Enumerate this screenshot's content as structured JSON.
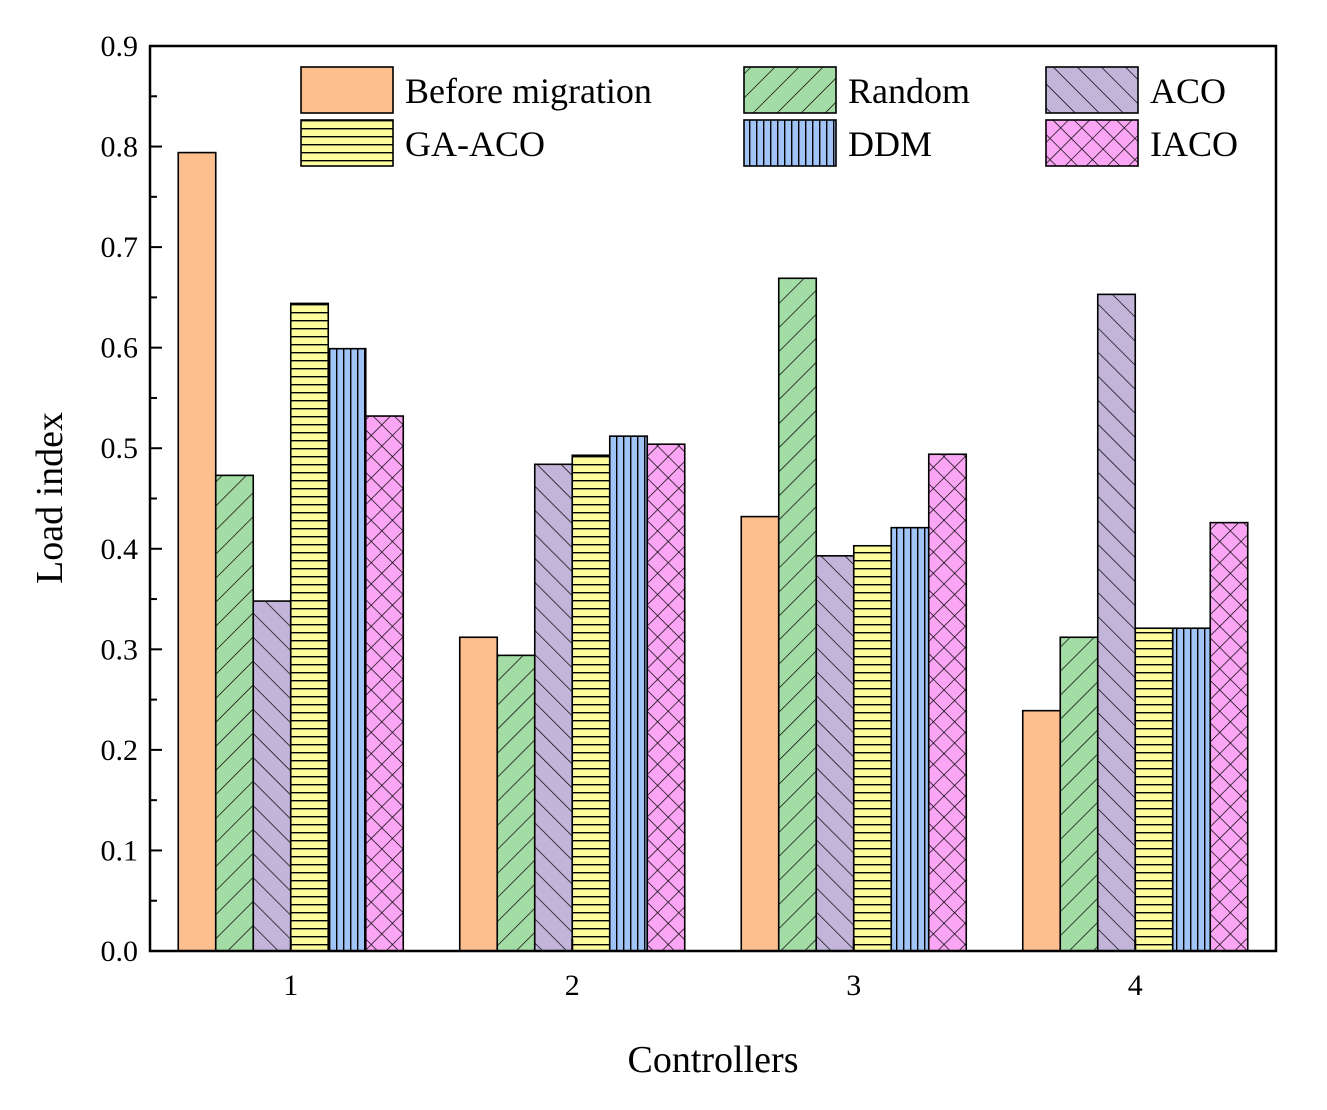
{
  "chart_data": {
    "type": "bar",
    "title": "",
    "xlabel": "Controllers",
    "ylabel": "Load index",
    "ylim": [
      0,
      0.9
    ],
    "yticks": [
      "0.0",
      "0.1",
      "0.2",
      "0.3",
      "0.4",
      "0.5",
      "0.6",
      "0.7",
      "0.8",
      "0.9"
    ],
    "categories": [
      "1",
      "2",
      "3",
      "4"
    ],
    "legend_position": "top-right",
    "series": [
      {
        "name": "Before migration",
        "values": [
          0.794,
          0.312,
          0.432,
          0.239
        ],
        "color": "#FDBF8E",
        "pattern": "none"
      },
      {
        "name": "Random",
        "values": [
          0.473,
          0.294,
          0.669,
          0.312
        ],
        "color": "#A4DCA6",
        "pattern": "diag-up"
      },
      {
        "name": "ACO",
        "values": [
          0.348,
          0.484,
          0.393,
          0.653
        ],
        "color": "#C3B5D9",
        "pattern": "diag-down"
      },
      {
        "name": "GA-ACO",
        "values": [
          0.644,
          0.493,
          0.403,
          0.321
        ],
        "color": "#FDFD9E",
        "pattern": "horizontal"
      },
      {
        "name": "DDM",
        "values": [
          0.599,
          0.512,
          0.421,
          0.321
        ],
        "color": "#9FC4F5",
        "pattern": "vertical"
      },
      {
        "name": "IACO",
        "values": [
          0.532,
          0.504,
          0.494,
          0.426
        ],
        "color": "#FBA6F4",
        "pattern": "cross"
      }
    ]
  }
}
